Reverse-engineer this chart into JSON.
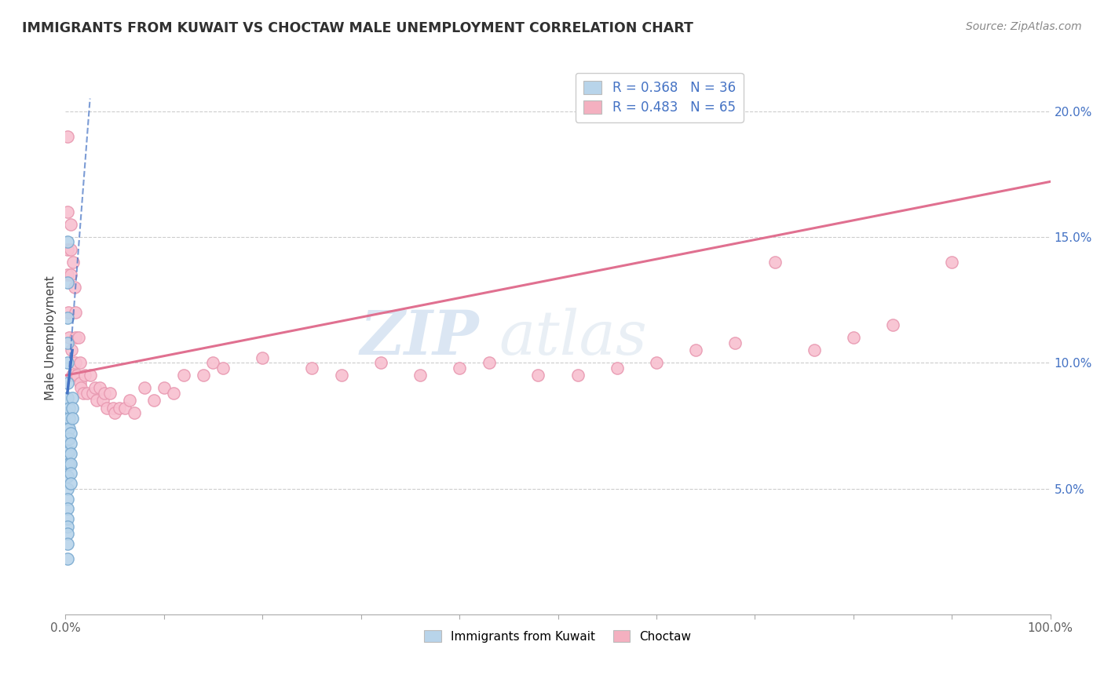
{
  "title": "IMMIGRANTS FROM KUWAIT VS CHOCTAW MALE UNEMPLOYMENT CORRELATION CHART",
  "source": "Source: ZipAtlas.com",
  "ylabel": "Male Unemployment",
  "watermark": "ZIPatlas",
  "legend_top": [
    {
      "label": "R = 0.368   N = 36",
      "color": "#b8d4ea"
    },
    {
      "label": "R = 0.483   N = 65",
      "color": "#f4b0c0"
    }
  ],
  "legend_bottom": [
    {
      "label": "Immigrants from Kuwait",
      "color": "#b8d4ea"
    },
    {
      "label": "Choctaw",
      "color": "#f4b0c0"
    }
  ],
  "xlim": [
    0,
    1.0
  ],
  "ylim": [
    0,
    0.22
  ],
  "ytick_vals": [
    0.05,
    0.1,
    0.15,
    0.2
  ],
  "xtick_vals": [
    0.0,
    0.1,
    0.2,
    0.3,
    0.4,
    0.5,
    0.6,
    0.7,
    0.8,
    0.9,
    1.0
  ],
  "background_color": "#ffffff",
  "grid_color": "#cccccc",
  "blue_scatter_x": [
    0.002,
    0.002,
    0.002,
    0.002,
    0.002,
    0.002,
    0.002,
    0.002,
    0.002,
    0.002,
    0.002,
    0.002,
    0.002,
    0.002,
    0.002,
    0.002,
    0.002,
    0.002,
    0.002,
    0.002,
    0.004,
    0.004,
    0.004,
    0.004,
    0.004,
    0.004,
    0.005,
    0.005,
    0.005,
    0.005,
    0.005,
    0.005,
    0.007,
    0.007,
    0.007,
    0.002
  ],
  "blue_scatter_y": [
    0.148,
    0.132,
    0.118,
    0.108,
    0.1,
    0.092,
    0.086,
    0.08,
    0.075,
    0.07,
    0.065,
    0.06,
    0.055,
    0.05,
    0.046,
    0.042,
    0.038,
    0.035,
    0.032,
    0.028,
    0.082,
    0.078,
    0.074,
    0.07,
    0.065,
    0.06,
    0.072,
    0.068,
    0.064,
    0.06,
    0.056,
    0.052,
    0.086,
    0.082,
    0.078,
    0.022
  ],
  "pink_scatter_x": [
    0.002,
    0.002,
    0.002,
    0.002,
    0.003,
    0.004,
    0.005,
    0.005,
    0.005,
    0.006,
    0.007,
    0.008,
    0.009,
    0.01,
    0.01,
    0.01,
    0.012,
    0.013,
    0.015,
    0.015,
    0.016,
    0.018,
    0.02,
    0.022,
    0.025,
    0.028,
    0.03,
    0.032,
    0.035,
    0.038,
    0.04,
    0.042,
    0.045,
    0.048,
    0.05,
    0.055,
    0.06,
    0.065,
    0.07,
    0.08,
    0.09,
    0.1,
    0.11,
    0.12,
    0.14,
    0.15,
    0.16,
    0.2,
    0.25,
    0.28,
    0.32,
    0.36,
    0.4,
    0.43,
    0.48,
    0.52,
    0.56,
    0.6,
    0.64,
    0.68,
    0.72,
    0.76,
    0.8,
    0.84,
    0.9
  ],
  "pink_scatter_y": [
    0.19,
    0.16,
    0.145,
    0.135,
    0.12,
    0.11,
    0.155,
    0.145,
    0.135,
    0.105,
    0.095,
    0.14,
    0.13,
    0.12,
    0.11,
    0.1,
    0.095,
    0.11,
    0.1,
    0.092,
    0.09,
    0.088,
    0.095,
    0.088,
    0.095,
    0.088,
    0.09,
    0.085,
    0.09,
    0.085,
    0.088,
    0.082,
    0.088,
    0.082,
    0.08,
    0.082,
    0.082,
    0.085,
    0.08,
    0.09,
    0.085,
    0.09,
    0.088,
    0.095,
    0.095,
    0.1,
    0.098,
    0.102,
    0.098,
    0.095,
    0.1,
    0.095,
    0.098,
    0.1,
    0.095,
    0.095,
    0.098,
    0.1,
    0.105,
    0.108,
    0.14,
    0.105,
    0.11,
    0.115,
    0.14
  ],
  "blue_line_color": "#4472c4",
  "pink_line_color": "#e07090",
  "scatter_blue_color": "#b8d4ea",
  "scatter_blue_edge": "#7aaad0",
  "scatter_pink_color": "#f8c0d0",
  "scatter_pink_edge": "#e898b0",
  "title_color": "#303030",
  "source_color": "#888888",
  "ylabel_color": "#404040",
  "right_tick_color": "#4472c4",
  "bottom_tick_color": "#606060",
  "marker_size": 11,
  "pink_line_x0": 0.0,
  "pink_line_y0": 0.095,
  "pink_line_x1": 1.0,
  "pink_line_y1": 0.172,
  "blue_line_solid_x0": 0.002,
  "blue_line_solid_y0": 0.088,
  "blue_line_solid_x1": 0.007,
  "blue_line_solid_y1": 0.105,
  "blue_line_dash_x0": 0.002,
  "blue_line_dash_y0": 0.088,
  "blue_line_dash_x1": 0.025,
  "blue_line_dash_y1": 0.205
}
